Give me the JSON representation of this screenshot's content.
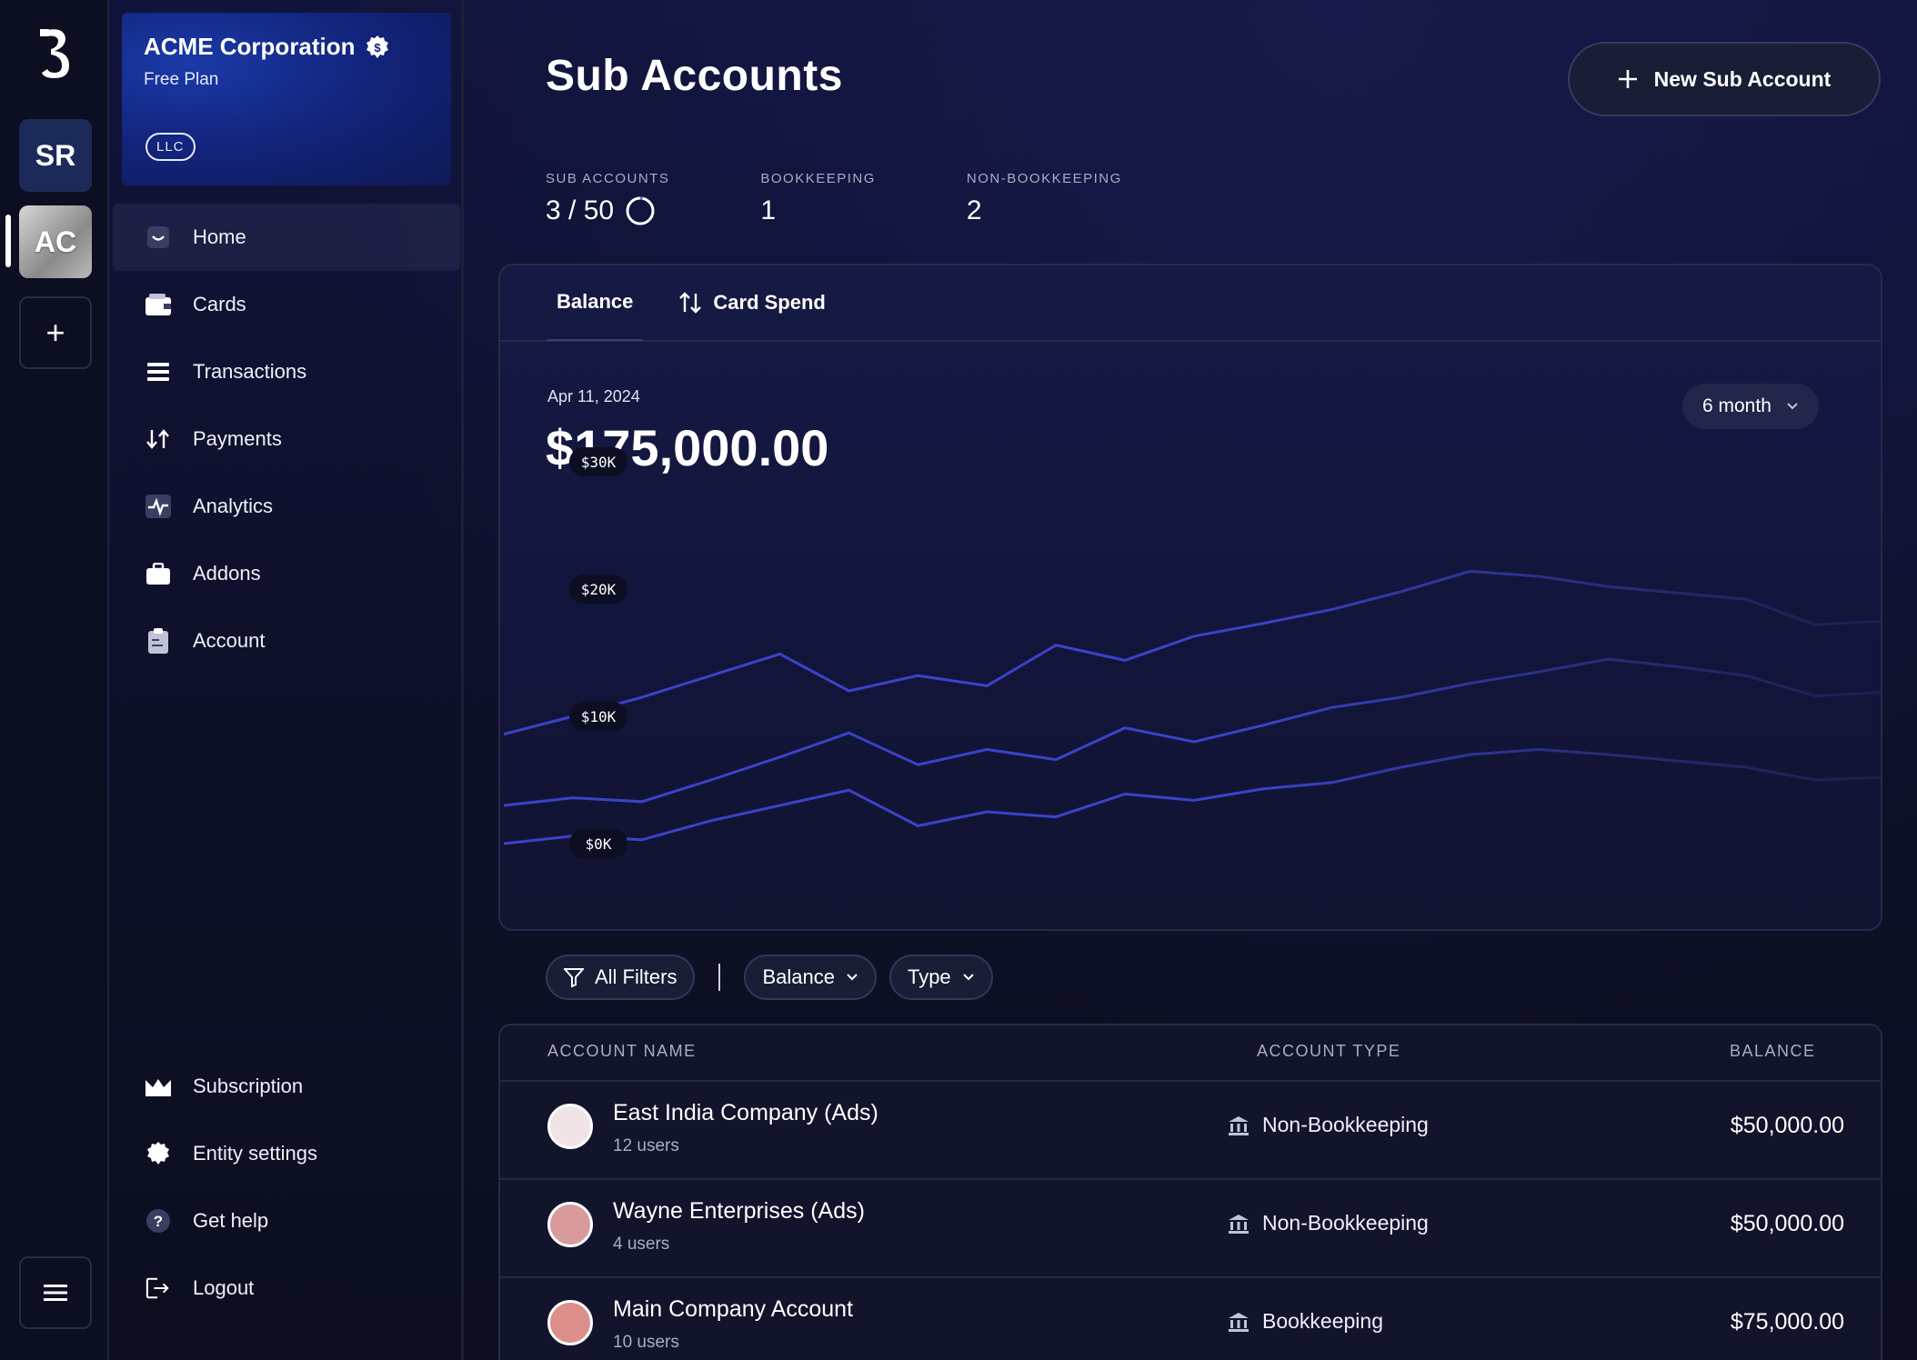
{
  "org": {
    "name": "ACME Corporation",
    "plan": "Free Plan",
    "entity_type": "LLC"
  },
  "rail": {
    "accounts": [
      "SR",
      "AC"
    ],
    "add_label": "+"
  },
  "nav": {
    "items": [
      {
        "label": "Home",
        "icon": "home-icon"
      },
      {
        "label": "Cards",
        "icon": "wallet-icon"
      },
      {
        "label": "Transactions",
        "icon": "list-icon"
      },
      {
        "label": "Payments",
        "icon": "arrows-icon"
      },
      {
        "label": "Analytics",
        "icon": "pulse-icon"
      },
      {
        "label": "Addons",
        "icon": "briefcase-icon"
      },
      {
        "label": "Account",
        "icon": "clipboard-icon"
      }
    ],
    "bottom": [
      {
        "label": "Subscription",
        "icon": "crown-icon"
      },
      {
        "label": "Entity settings",
        "icon": "gear-icon"
      },
      {
        "label": "Get help",
        "icon": "help-icon"
      },
      {
        "label": "Logout",
        "icon": "logout-icon"
      }
    ]
  },
  "header": {
    "title": "Sub Accounts",
    "new_button": "New Sub Account"
  },
  "stats": [
    {
      "label": "SUB ACCOUNTS",
      "value": "3 / 50"
    },
    {
      "label": "BOOKKEEPING",
      "value": "1"
    },
    {
      "label": "NON-BOOKKEEPING",
      "value": "2"
    }
  ],
  "chart_tabs": [
    "Balance",
    "Card Spend"
  ],
  "chart_summary": {
    "date": "Apr 11, 2024",
    "value": "$175,000.00",
    "range": "6 month"
  },
  "chart_data": {
    "type": "line",
    "ytick_labels": [
      "$30K",
      "$20K",
      "$10K",
      "$0K"
    ],
    "ylim": [
      0,
      30000
    ],
    "x": [
      0,
      1,
      2,
      3,
      4,
      5,
      6,
      7,
      8,
      9,
      10,
      11,
      12,
      13,
      14,
      15,
      16,
      17,
      18,
      19,
      20
    ],
    "series": [
      {
        "values": [
          8600,
          10000,
          11500,
          13200,
          14900,
          12000,
          13200,
          12400,
          15600,
          14400,
          16300,
          17300,
          18400,
          19800,
          21400,
          21000,
          20200,
          19700,
          19200,
          17200,
          17500
        ]
      },
      {
        "values": [
          3000,
          3600,
          3300,
          5000,
          6800,
          8700,
          6200,
          7400,
          6600,
          9100,
          8000,
          9300,
          10700,
          11500,
          12600,
          13500,
          14500,
          13900,
          13200,
          11600,
          11900
        ]
      },
      {
        "values": [
          0,
          600,
          300,
          1800,
          3000,
          4200,
          1400,
          2500,
          2100,
          3900,
          3400,
          4300,
          4800,
          6000,
          7000,
          7400,
          7000,
          6500,
          6000,
          5000,
          5200
        ]
      }
    ]
  },
  "filters": [
    "All Filters",
    "Balance",
    "Type"
  ],
  "table": {
    "columns": [
      "ACCOUNT NAME",
      "ACCOUNT TYPE",
      "BALANCE"
    ],
    "rows": [
      {
        "name": "East India Company (Ads)",
        "users": "12 users",
        "type": "Non-Bookkeeping",
        "balance": "$50,000.00",
        "color": "#f1e4e6"
      },
      {
        "name": "Wayne Enterprises (Ads)",
        "users": "4 users",
        "type": "Non-Bookkeeping",
        "balance": "$50,000.00",
        "color": "#d99a9c"
      },
      {
        "name": "Main Company Account",
        "users": "10 users",
        "type": "Bookkeeping",
        "balance": "$75,000.00",
        "color": "#dc8f8a"
      }
    ]
  }
}
